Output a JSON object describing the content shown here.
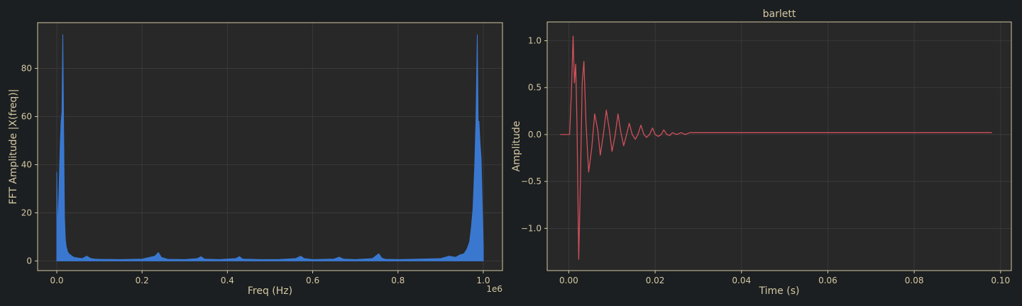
{
  "theme": {
    "background": "#1c1f21",
    "axes_face": "#282828",
    "frame": "#d4c9a4",
    "grid": "#3c3c3c",
    "text": "#d4c9a4"
  },
  "chart_data": [
    {
      "type": "area",
      "title": "",
      "xlabel": "Freq (Hz)",
      "ylabel": "FFT Amplitude |X(freq)|",
      "x_offset_text": "1e6",
      "xlim": [
        -0.045,
        1.045
      ],
      "ylim": [
        -4,
        99
      ],
      "xticks": [
        0.0,
        0.2,
        0.4,
        0.6,
        0.8,
        1.0
      ],
      "xtick_labels": [
        "0.0",
        "0.2",
        "0.4",
        "0.6",
        "0.8",
        "1.0"
      ],
      "yticks": [
        0,
        20,
        40,
        60,
        80
      ],
      "ytick_labels": [
        "0",
        "20",
        "40",
        "60",
        "80"
      ],
      "grid": true,
      "color": "#3a78d0",
      "series": [
        {
          "x": [
            0.0,
            0.002,
            0.005,
            0.008,
            0.01,
            0.012,
            0.014,
            0.016,
            0.018,
            0.02,
            0.022,
            0.025,
            0.028,
            0.032,
            0.036,
            0.04,
            0.05,
            0.06,
            0.07,
            0.08,
            0.09,
            0.1,
            0.15,
            0.2,
            0.23,
            0.238,
            0.245,
            0.26,
            0.3,
            0.33,
            0.338,
            0.346,
            0.38,
            0.42,
            0.428,
            0.436,
            0.48,
            0.52,
            0.56,
            0.572,
            0.58,
            0.6,
            0.65,
            0.662,
            0.672,
            0.7,
            0.74,
            0.755,
            0.762,
            0.77,
            0.8,
            0.83,
            0.9,
            0.92,
            0.935,
            0.945,
            0.955,
            0.962,
            0.968,
            0.972,
            0.976,
            0.98,
            0.983,
            0.986,
            0.988,
            0.99,
            0.992,
            0.995,
            0.998,
            1.0
          ],
          "y": [
            37,
            12,
            28,
            48,
            58,
            62,
            94,
            55,
            18,
            9,
            6,
            4,
            3,
            2.5,
            2,
            1.5,
            1.2,
            1,
            2,
            1,
            0.8,
            0.7,
            0.6,
            0.8,
            2,
            3.5,
            1.5,
            0.7,
            0.6,
            1,
            1.8,
            0.8,
            0.6,
            1,
            1.8,
            0.8,
            0.6,
            0.6,
            1,
            2,
            1,
            0.6,
            0.8,
            1.6,
            0.8,
            0.6,
            1,
            3,
            1.2,
            0.7,
            0.6,
            0.7,
            1,
            2,
            1.5,
            2.5,
            3,
            5,
            8,
            14,
            22,
            40,
            60,
            94,
            58,
            58,
            50,
            42,
            20,
            6
          ]
        }
      ]
    },
    {
      "type": "line",
      "title": "barlett",
      "xlabel": "Time (s)",
      "ylabel": "Amplitude",
      "xlim": [
        -0.005,
        0.1025
      ],
      "ylim": [
        -1.45,
        1.2
      ],
      "xticks": [
        0.0,
        0.02,
        0.04,
        0.06,
        0.08,
        0.1
      ],
      "xtick_labels": [
        "0.00",
        "0.02",
        "0.04",
        "0.06",
        "0.08",
        "0.10"
      ],
      "yticks": [
        -1.0,
        -0.5,
        0.0,
        0.5,
        1.0
      ],
      "ytick_labels": [
        "−1.0",
        "−0.5",
        "0.0",
        "0.5",
        "1.0"
      ],
      "grid": true,
      "color": "#d0505a",
      "series": [
        {
          "x": [
            -0.002,
            0.0002,
            0.0006,
            0.001,
            0.0013,
            0.0016,
            0.0019,
            0.0023,
            0.0027,
            0.0031,
            0.0035,
            0.004,
            0.0046,
            0.0053,
            0.006,
            0.0067,
            0.0073,
            0.008,
            0.0087,
            0.0094,
            0.01,
            0.0107,
            0.0114,
            0.012,
            0.0127,
            0.0134,
            0.014,
            0.0147,
            0.0154,
            0.016,
            0.0167,
            0.0174,
            0.018,
            0.0187,
            0.0194,
            0.02,
            0.0207,
            0.0214,
            0.022,
            0.0227,
            0.0234,
            0.024,
            0.025,
            0.026,
            0.027,
            0.028,
            0.03,
            0.098
          ],
          "y": [
            0.0,
            0.0,
            0.45,
            1.05,
            0.55,
            0.75,
            0.1,
            -1.33,
            -0.5,
            0.55,
            0.78,
            0.1,
            -0.4,
            -0.15,
            0.22,
            0.05,
            -0.22,
            0.0,
            0.26,
            0.05,
            -0.18,
            -0.02,
            0.22,
            0.04,
            -0.12,
            0.0,
            0.12,
            0.0,
            -0.05,
            0.0,
            0.1,
            0.0,
            -0.03,
            0.0,
            0.07,
            0.0,
            -0.02,
            0.0,
            0.05,
            0.0,
            -0.01,
            0.02,
            0.0,
            0.02,
            0.0,
            0.02,
            0.02,
            0.02
          ]
        }
      ]
    }
  ]
}
